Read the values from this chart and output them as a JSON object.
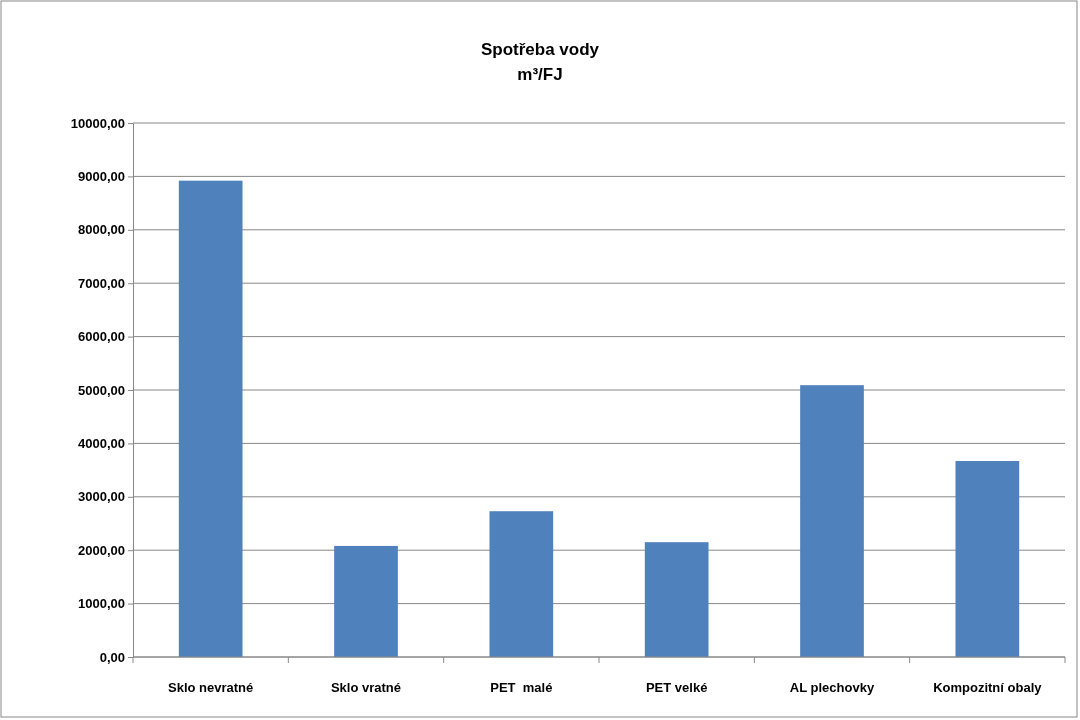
{
  "chart_data": {
    "type": "bar",
    "title": "Spotřeba vody",
    "subtitle": "m³/FJ",
    "categories": [
      "Sklo nevratné",
      "Sklo vratné",
      "PET  malé",
      "PET velké",
      "AL plechovky",
      "Kompozitní obaly"
    ],
    "values": [
      8920,
      2080,
      2730,
      2150,
      5090,
      3670
    ],
    "color": "#4f81bd",
    "ylim": [
      0,
      10000
    ],
    "yticks": [
      {
        "value": 0,
        "label": "0,00"
      },
      {
        "value": 1000,
        "label": "1000,00"
      },
      {
        "value": 2000,
        "label": "2000,00"
      },
      {
        "value": 3000,
        "label": "3000,00"
      },
      {
        "value": 4000,
        "label": "4000,00"
      },
      {
        "value": 5000,
        "label": "5000,00"
      },
      {
        "value": 6000,
        "label": "6000,00"
      },
      {
        "value": 7000,
        "label": "7000,00"
      },
      {
        "value": 8000,
        "label": "8000,00"
      },
      {
        "value": 9000,
        "label": "9000,00"
      },
      {
        "value": 10000,
        "label": "10000,00"
      }
    ],
    "grid": "y"
  }
}
